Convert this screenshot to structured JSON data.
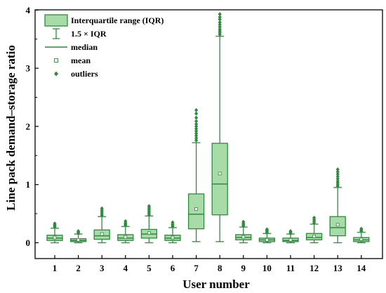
{
  "chart_data": {
    "type": "boxplot",
    "xlabel": "User number",
    "ylabel": "Line pack demand–storage ratio",
    "ylim": [
      0,
      4
    ],
    "y_ticks": [
      0,
      1,
      2,
      3,
      4
    ],
    "grid": false,
    "legend_position": "top-left",
    "colors": {
      "box_fill": "#a8dba8",
      "box_stroke": "#2e8b3e",
      "outlier": "#2e8b3e",
      "axis": "#000000"
    },
    "legend": [
      {
        "symbol": "box",
        "label": "Interquartile range (IQR)"
      },
      {
        "symbol": "whisker",
        "label": "1.5 × IQR"
      },
      {
        "symbol": "line",
        "label": "median"
      },
      {
        "symbol": "square",
        "label": "mean"
      },
      {
        "symbol": "diamond",
        "label": "outliers"
      }
    ],
    "categories": [
      "1",
      "2",
      "3",
      "4",
      "5",
      "6",
      "7",
      "8",
      "9",
      "10",
      "11",
      "12",
      "13",
      "14"
    ],
    "boxes": [
      {
        "q1": 0.04,
        "median": 0.08,
        "q3": 0.13,
        "whisker_low": 0.0,
        "whisker_high": 0.25,
        "mean": 0.09,
        "outliers": [
          0.27,
          0.29,
          0.31,
          0.33
        ]
      },
      {
        "q1": 0.02,
        "median": 0.04,
        "q3": 0.07,
        "whisker_low": 0.0,
        "whisker_high": 0.15,
        "mean": 0.05,
        "outliers": [
          0.16,
          0.18,
          0.2
        ]
      },
      {
        "q1": 0.06,
        "median": 0.12,
        "q3": 0.22,
        "whisker_low": 0.0,
        "whisker_high": 0.45,
        "mean": 0.15,
        "outliers": [
          0.47,
          0.5,
          0.53,
          0.56,
          0.59
        ]
      },
      {
        "q1": 0.04,
        "median": 0.08,
        "q3": 0.14,
        "whisker_low": 0.0,
        "whisker_high": 0.28,
        "mean": 0.1,
        "outliers": [
          0.3,
          0.32,
          0.34,
          0.37
        ]
      },
      {
        "q1": 0.08,
        "median": 0.15,
        "q3": 0.23,
        "whisker_low": 0.0,
        "whisker_high": 0.46,
        "mean": 0.17,
        "outliers": [
          0.48,
          0.51,
          0.54,
          0.57,
          0.6,
          0.63
        ]
      },
      {
        "q1": 0.04,
        "median": 0.08,
        "q3": 0.13,
        "whisker_low": 0.0,
        "whisker_high": 0.26,
        "mean": 0.09,
        "outliers": [
          0.28,
          0.3,
          0.32,
          0.35
        ]
      },
      {
        "q1": 0.24,
        "median": 0.49,
        "q3": 0.84,
        "whisker_low": 0.02,
        "whisker_high": 1.72,
        "mean": 0.58,
        "outliers": [
          1.76,
          1.8,
          1.84,
          1.88,
          1.92,
          1.96,
          2.0,
          2.04,
          2.09,
          2.15,
          2.22,
          2.28
        ]
      },
      {
        "q1": 0.48,
        "median": 1.01,
        "q3": 1.71,
        "whisker_low": 0.02,
        "whisker_high": 3.55,
        "mean": 1.19,
        "outliers": [
          3.58,
          3.61,
          3.64,
          3.67,
          3.71,
          3.75,
          3.79,
          3.84,
          3.88,
          3.93
        ]
      },
      {
        "q1": 0.05,
        "median": 0.09,
        "q3": 0.14,
        "whisker_low": 0.0,
        "whisker_high": 0.27,
        "mean": 0.1,
        "outliers": [
          0.29,
          0.31,
          0.33,
          0.36
        ]
      },
      {
        "q1": 0.02,
        "median": 0.05,
        "q3": 0.08,
        "whisker_low": 0.0,
        "whisker_high": 0.16,
        "mean": 0.05,
        "outliers": [
          0.17,
          0.19,
          0.21,
          0.23
        ]
      },
      {
        "q1": 0.02,
        "median": 0.04,
        "q3": 0.08,
        "whisker_low": 0.0,
        "whisker_high": 0.15,
        "mean": 0.05,
        "outliers": [
          0.16,
          0.18,
          0.2
        ]
      },
      {
        "q1": 0.05,
        "median": 0.09,
        "q3": 0.16,
        "whisker_low": 0.0,
        "whisker_high": 0.32,
        "mean": 0.11,
        "outliers": [
          0.34,
          0.37,
          0.4,
          0.43
        ]
      },
      {
        "q1": 0.12,
        "median": 0.26,
        "q3": 0.45,
        "whisker_low": 0.0,
        "whisker_high": 0.95,
        "mean": 0.31,
        "outliers": [
          0.97,
          1.0,
          1.03,
          1.06,
          1.1,
          1.14,
          1.18,
          1.22,
          1.26
        ]
      },
      {
        "q1": 0.02,
        "median": 0.05,
        "q3": 0.09,
        "whisker_low": 0.0,
        "whisker_high": 0.18,
        "mean": 0.06,
        "outliers": [
          0.2,
          0.22,
          0.24
        ]
      }
    ]
  }
}
